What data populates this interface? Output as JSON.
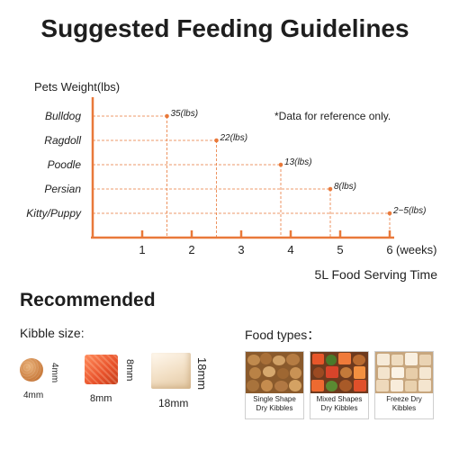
{
  "title": "Suggested Feeding Guidelines",
  "note": "*Data for reference only.",
  "chart_data": {
    "type": "scatter",
    "ylabel": "Pets Weight(lbs)",
    "xlabel": "5L Food Serving Time",
    "x_unit": "(weeks)",
    "x_ticks": [
      "1",
      "2",
      "3",
      "4",
      "5",
      "6"
    ],
    "xlim": [
      0,
      6
    ],
    "categories": [
      "Bulldog",
      "Ragdoll",
      "Poodle",
      "Persian",
      "Kitty/Puppy"
    ],
    "points": [
      {
        "category": "Bulldog",
        "x": 1.5,
        "label": "35(lbs)"
      },
      {
        "category": "Ragdoll",
        "x": 2.5,
        "label": "22(lbs)"
      },
      {
        "category": "Poodle",
        "x": 3.8,
        "label": "13(lbs)"
      },
      {
        "category": "Persian",
        "x": 4.8,
        "label": "8(lbs)"
      },
      {
        "category": "Kitty/Puppy",
        "x": 6.0,
        "label": "2~5(lbs)"
      }
    ],
    "color": "#e9793a"
  },
  "recommended": {
    "title": "Recommended",
    "kibble_label": "Kibble size:",
    "food_label": "Food types：",
    "sizes": [
      {
        "w": "4mm",
        "h": "4mm"
      },
      {
        "w": "8mm",
        "h": "8mm"
      },
      {
        "w": "18mm",
        "h": "18mm"
      }
    ],
    "foods": [
      {
        "line1": "Single Shape",
        "line2": "Dry Kibbles"
      },
      {
        "line1": "Mixed Shapes",
        "line2": "Dry Kibbles"
      },
      {
        "line1": "Freeze Dry",
        "line2": "Kibbles"
      }
    ]
  }
}
